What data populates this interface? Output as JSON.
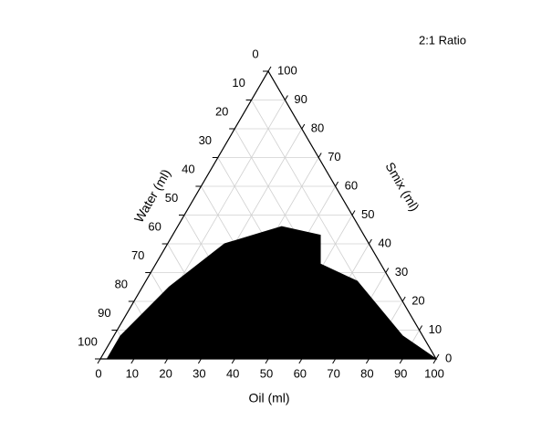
{
  "chart_data": {
    "type": "ternary",
    "title": "2:1 Ratio",
    "bottom_axis_label": "Oil (ml)",
    "left_axis_label": "Water (ml)",
    "right_axis_label": "Smix (ml)",
    "oil_ticks": [
      0,
      10,
      20,
      30,
      40,
      50,
      60,
      70,
      80,
      90,
      100
    ],
    "water_ticks": [
      0,
      10,
      20,
      30,
      40,
      50,
      60,
      70,
      80,
      90,
      100
    ],
    "smix_ticks": [
      0,
      10,
      20,
      30,
      40,
      50,
      60,
      70,
      80,
      90,
      100
    ],
    "grid": true,
    "region": {
      "color": "#000000",
      "oil": [
        2,
        2,
        8,
        17,
        31,
        44,
        49,
        63,
        86,
        100
      ],
      "smix": [
        0,
        8,
        25,
        40,
        46,
        43,
        33,
        27,
        8,
        0
      ],
      "water": [
        98,
        90,
        67,
        43,
        23,
        13,
        18,
        10,
        6,
        0
      ]
    }
  }
}
